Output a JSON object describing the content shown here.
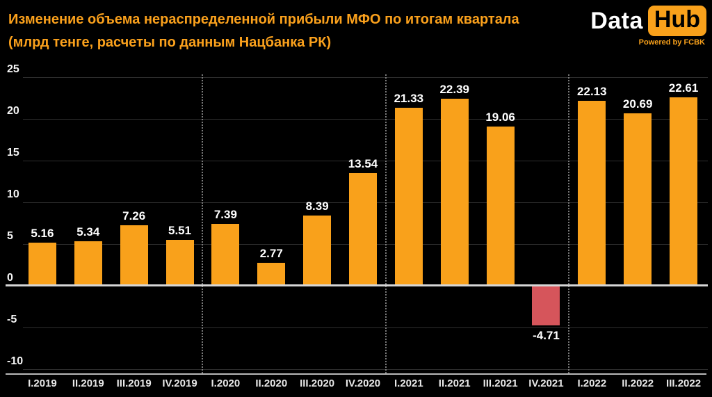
{
  "logo": {
    "part1": "Data",
    "part2": "Hub",
    "tagline": "Powered by FCBK"
  },
  "colors": {
    "accent_orange": "#F9A11B",
    "negative_red": "#D6555B",
    "title_orange": "#FBA11C",
    "background": "#000000"
  },
  "chart_data": {
    "type": "bar",
    "title": "Изменение объема нераспределенной прибыли МФО по итогам квартала",
    "subtitle": "(млрд тенге, расчеты по данным Нацбанка РК)",
    "categories": [
      "I.2019",
      "II.2019",
      "III.2019",
      "IV.2019",
      "I.2020",
      "II.2020",
      "III.2020",
      "IV.2020",
      "I.2021",
      "II.2021",
      "III.2021",
      "IV.2021",
      "I.2022",
      "II.2022",
      "III.2022"
    ],
    "values": [
      5.16,
      5.34,
      7.26,
      5.51,
      7.39,
      2.77,
      8.39,
      13.54,
      21.33,
      22.39,
      19.06,
      -4.71,
      22.13,
      20.69,
      22.61
    ],
    "value_labels": [
      "5.16",
      "5.34",
      "7.26",
      "5.51",
      "7.39",
      "2.77",
      "8.39",
      "13.54",
      "21.33",
      "22.39",
      "19.06",
      "-4.71",
      "22.13",
      "20.69",
      "22.61"
    ],
    "xlabel": "",
    "ylabel": "",
    "ylim": [
      -10,
      25
    ],
    "yticks": [
      25,
      20,
      15,
      10,
      5,
      0,
      -5,
      -10
    ],
    "grid": "horizontal",
    "legend": false,
    "bar_color": "#F9A11B",
    "negative_bar_color": "#D6555B",
    "year_separator_after_indices": [
      3,
      7,
      11
    ]
  }
}
